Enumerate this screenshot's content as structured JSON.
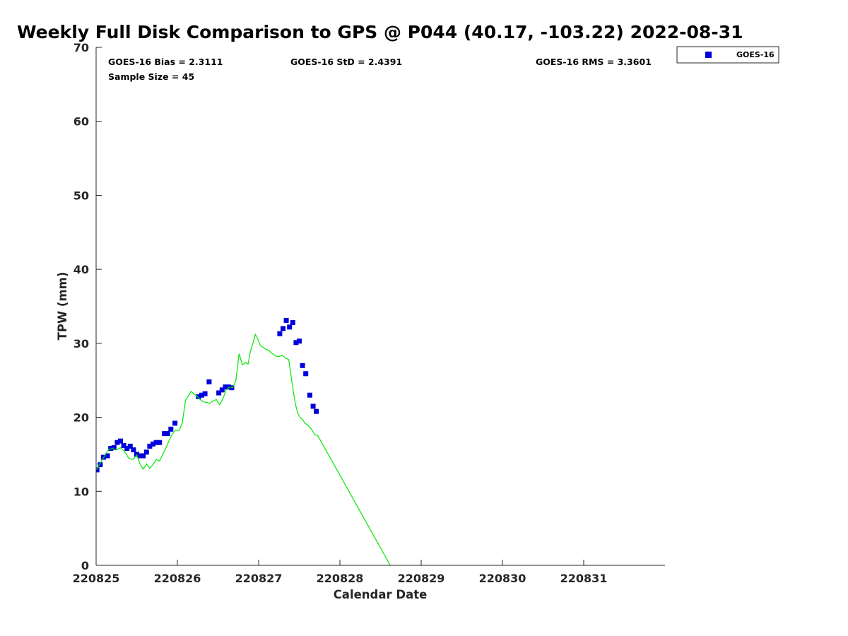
{
  "chart_data": {
    "type": "scatter",
    "title": "Weekly Full Disk Comparison to GPS @ P044 (40.17, -103.22) 2022-08-31",
    "xlabel": "Calendar Date",
    "ylabel": "TPW (mm)",
    "xlim": [
      0,
      7.0
    ],
    "ylim": [
      0,
      70
    ],
    "x_tick_labels": [
      "220825",
      "220826",
      "220827",
      "220828",
      "220829",
      "220830",
      "220831"
    ],
    "y_tick_labels": [
      "0",
      "10",
      "20",
      "30",
      "40",
      "50",
      "60",
      "70"
    ],
    "x_unit_note": "x values are days after the 220825 tick",
    "grid": false,
    "legend_position": "top-right, outside plot",
    "stats": {
      "bias": "GOES-16 Bias = 2.3111",
      "std": "GOES-16 StD = 2.4391",
      "rms": "GOES-16 RMS = 3.3601",
      "sample_size": "Sample Size = 45"
    },
    "series": [
      {
        "name": "GOES-16",
        "kind": "scatter",
        "color": "#0000dd",
        "marker": "square",
        "x": [
          0.01,
          0.05,
          0.09,
          0.14,
          0.18,
          0.22,
          0.26,
          0.3,
          0.34,
          0.38,
          0.42,
          0.46,
          0.5,
          0.54,
          0.58,
          0.62,
          0.66,
          0.7,
          0.74,
          0.78,
          0.84,
          0.88,
          0.92,
          0.97,
          1.26,
          1.3,
          1.34,
          1.39,
          1.51,
          1.55,
          1.59,
          1.63,
          1.67,
          2.26,
          2.3,
          2.34,
          2.38,
          2.42,
          2.46,
          2.5,
          2.54,
          2.58,
          2.63,
          2.67,
          2.71
        ],
        "y": [
          12.9,
          13.6,
          14.6,
          14.8,
          15.8,
          15.9,
          16.6,
          16.8,
          16.2,
          15.8,
          16.1,
          15.6,
          15.0,
          14.8,
          14.8,
          15.3,
          16.1,
          16.4,
          16.6,
          16.6,
          17.8,
          17.8,
          18.4,
          19.2,
          22.8,
          23.0,
          23.2,
          24.8,
          23.3,
          23.7,
          24.1,
          24.1,
          24.0,
          31.3,
          32.0,
          33.1,
          32.2,
          32.8,
          30.1,
          30.3,
          27.0,
          25.9,
          23.0,
          21.5,
          20.8
        ]
      },
      {
        "name": "",
        "kind": "line",
        "color": "#00e800",
        "x": [
          0.0,
          0.05,
          0.1,
          0.15,
          0.2,
          0.25,
          0.3,
          0.35,
          0.4,
          0.45,
          0.5,
          0.54,
          0.58,
          0.62,
          0.66,
          0.7,
          0.74,
          0.78,
          0.82,
          0.86,
          0.9,
          0.94,
          0.98,
          1.02,
          1.06,
          1.1,
          1.14,
          1.17,
          1.2,
          1.24,
          1.28,
          1.32,
          1.36,
          1.4,
          1.44,
          1.48,
          1.52,
          1.56,
          1.6,
          1.64,
          1.68,
          1.72,
          1.76,
          1.8,
          1.84,
          1.87,
          1.9,
          1.93,
          1.96,
          1.99,
          2.02,
          2.05,
          2.09,
          2.13,
          2.17,
          2.21,
          2.25,
          2.29,
          2.33,
          2.37,
          2.41,
          2.45,
          2.48,
          2.51,
          2.54,
          2.57,
          2.61,
          2.65,
          2.69,
          2.73,
          3.62
        ],
        "y": [
          12.9,
          13.8,
          14.7,
          15.6,
          15.8,
          15.6,
          15.9,
          15.4,
          14.5,
          14.3,
          14.9,
          13.7,
          13.0,
          13.7,
          13.1,
          13.6,
          14.3,
          14.1,
          15.0,
          15.9,
          16.9,
          17.8,
          18.3,
          18.2,
          19.2,
          22.3,
          23.0,
          23.5,
          23.2,
          22.9,
          22.4,
          22.1,
          22.0,
          21.9,
          22.2,
          22.4,
          21.7,
          22.5,
          23.7,
          24.1,
          24.0,
          25.0,
          28.6,
          27.1,
          27.4,
          27.2,
          29.0,
          30.0,
          31.2,
          30.6,
          29.7,
          29.5,
          29.2,
          29.0,
          28.6,
          28.3,
          28.2,
          28.4,
          28.0,
          27.8,
          24.7,
          21.9,
          20.6,
          20.0,
          19.7,
          19.2,
          18.9,
          18.4,
          17.7,
          17.5,
          0.0
        ]
      }
    ]
  }
}
